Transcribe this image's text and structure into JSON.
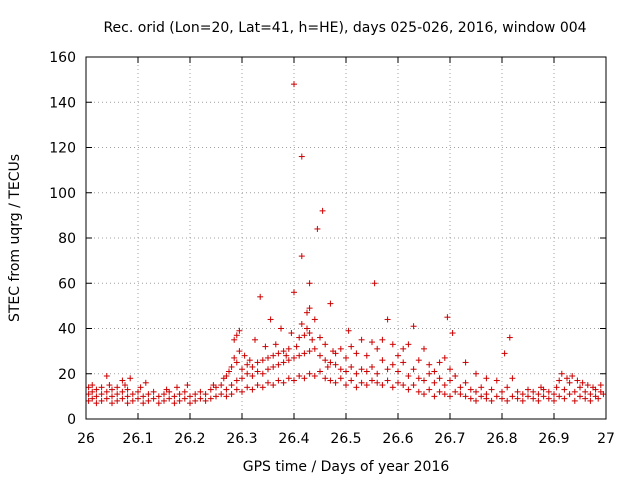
{
  "chart_data": {
    "type": "scatter",
    "title": "Rec. orid (Lon=20, Lat=41, h=HE), days 025-026, 2016, window 004",
    "xlabel": "GPS time / Days of year 2016",
    "ylabel": "STEC from uqrg / TECUs",
    "xlim": [
      26,
      27
    ],
    "ylim": [
      0,
      160
    ],
    "xticks": [
      "26",
      "26.1",
      "26.2",
      "26.3",
      "26.4",
      "26.5",
      "26.6",
      "26.7",
      "26.8",
      "26.9",
      "27"
    ],
    "yticks": [
      "0",
      "20",
      "40",
      "60",
      "80",
      "100",
      "120",
      "140",
      "160"
    ],
    "grid": true,
    "marker": "plus",
    "color": "#cc0000",
    "series": [
      {
        "points": [
          [
            26.005,
            8
          ],
          [
            26.005,
            11
          ],
          [
            26.005,
            14
          ],
          [
            26.012,
            9
          ],
          [
            26.012,
            12
          ],
          [
            26.012,
            15
          ],
          [
            26.02,
            7
          ],
          [
            26.02,
            10
          ],
          [
            26.02,
            13
          ],
          [
            26.03,
            8
          ],
          [
            26.03,
            11
          ],
          [
            26.03,
            14
          ],
          [
            26.04,
            9
          ],
          [
            26.04,
            12
          ],
          [
            26.04,
            19
          ],
          [
            26.045,
            15
          ],
          [
            26.05,
            7
          ],
          [
            26.05,
            10
          ],
          [
            26.05,
            13
          ],
          [
            26.06,
            8
          ],
          [
            26.06,
            11
          ],
          [
            26.06,
            14
          ],
          [
            26.07,
            9
          ],
          [
            26.07,
            12
          ],
          [
            26.07,
            17
          ],
          [
            26.075,
            15
          ],
          [
            26.08,
            7
          ],
          [
            26.08,
            10
          ],
          [
            26.08,
            13
          ],
          [
            26.085,
            18
          ],
          [
            26.09,
            8
          ],
          [
            26.09,
            11
          ],
          [
            26.1,
            9
          ],
          [
            26.1,
            12
          ],
          [
            26.105,
            14
          ],
          [
            26.11,
            7
          ],
          [
            26.11,
            10
          ],
          [
            26.115,
            16
          ],
          [
            26.12,
            8
          ],
          [
            26.12,
            11
          ],
          [
            26.13,
            9
          ],
          [
            26.13,
            12
          ],
          [
            26.14,
            7
          ],
          [
            26.14,
            10
          ],
          [
            26.15,
            8
          ],
          [
            26.15,
            11
          ],
          [
            26.155,
            13
          ],
          [
            26.16,
            9
          ],
          [
            26.16,
            12
          ],
          [
            26.17,
            7
          ],
          [
            26.17,
            10
          ],
          [
            26.175,
            14
          ],
          [
            26.18,
            8
          ],
          [
            26.18,
            11
          ],
          [
            26.19,
            9
          ],
          [
            26.19,
            12
          ],
          [
            26.195,
            15
          ],
          [
            26.2,
            7
          ],
          [
            26.2,
            10
          ],
          [
            26.21,
            8
          ],
          [
            26.21,
            11
          ],
          [
            26.22,
            9
          ],
          [
            26.22,
            12
          ],
          [
            26.23,
            8
          ],
          [
            26.23,
            11
          ],
          [
            26.24,
            9
          ],
          [
            26.24,
            13
          ],
          [
            26.245,
            15
          ],
          [
            26.25,
            10
          ],
          [
            26.25,
            14
          ],
          [
            26.26,
            11
          ],
          [
            26.26,
            15
          ],
          [
            26.265,
            18
          ],
          [
            26.27,
            10
          ],
          [
            26.27,
            13
          ],
          [
            26.27,
            19
          ],
          [
            26.275,
            21
          ],
          [
            26.28,
            11
          ],
          [
            26.28,
            15
          ],
          [
            26.28,
            23
          ],
          [
            26.285,
            27
          ],
          [
            26.285,
            35
          ],
          [
            26.29,
            13
          ],
          [
            26.29,
            17
          ],
          [
            26.29,
            25
          ],
          [
            26.29,
            37
          ],
          [
            26.295,
            30
          ],
          [
            26.295,
            39
          ],
          [
            26.3,
            12
          ],
          [
            26.3,
            18
          ],
          [
            26.3,
            22
          ],
          [
            26.305,
            28
          ],
          [
            26.31,
            14
          ],
          [
            26.31,
            20
          ],
          [
            26.31,
            24
          ],
          [
            26.315,
            26
          ],
          [
            26.32,
            13
          ],
          [
            26.32,
            19
          ],
          [
            26.32,
            23
          ],
          [
            26.325,
            35
          ],
          [
            26.33,
            15
          ],
          [
            26.33,
            21
          ],
          [
            26.33,
            25
          ],
          [
            26.335,
            54
          ],
          [
            26.34,
            14
          ],
          [
            26.34,
            20
          ],
          [
            26.34,
            26
          ],
          [
            26.345,
            32
          ],
          [
            26.35,
            16
          ],
          [
            26.35,
            22
          ],
          [
            26.35,
            27
          ],
          [
            26.355,
            44
          ],
          [
            26.36,
            15
          ],
          [
            26.36,
            23
          ],
          [
            26.36,
            28
          ],
          [
            26.365,
            33
          ],
          [
            26.37,
            17
          ],
          [
            26.37,
            24
          ],
          [
            26.37,
            29
          ],
          [
            26.375,
            40
          ],
          [
            26.38,
            16
          ],
          [
            26.38,
            25
          ],
          [
            26.38,
            30
          ],
          [
            26.385,
            28
          ],
          [
            26.39,
            18
          ],
          [
            26.39,
            26
          ],
          [
            26.39,
            31
          ],
          [
            26.395,
            38
          ],
          [
            26.4,
            17
          ],
          [
            26.4,
            27
          ],
          [
            26.4,
            56
          ],
          [
            26.4,
            148
          ],
          [
            26.405,
            32
          ],
          [
            26.41,
            19
          ],
          [
            26.41,
            28
          ],
          [
            26.41,
            36
          ],
          [
            26.415,
            42
          ],
          [
            26.415,
            72
          ],
          [
            26.415,
            116
          ],
          [
            26.42,
            18
          ],
          [
            26.42,
            29
          ],
          [
            26.42,
            37
          ],
          [
            26.425,
            40
          ],
          [
            26.425,
            47
          ],
          [
            26.43,
            20
          ],
          [
            26.43,
            30
          ],
          [
            26.43,
            38
          ],
          [
            26.43,
            49
          ],
          [
            26.43,
            60
          ],
          [
            26.435,
            35
          ],
          [
            26.44,
            19
          ],
          [
            26.44,
            31
          ],
          [
            26.44,
            44
          ],
          [
            26.445,
            84
          ],
          [
            26.45,
            21
          ],
          [
            26.45,
            28
          ],
          [
            26.45,
            36
          ],
          [
            26.455,
            92
          ],
          [
            26.46,
            18
          ],
          [
            26.46,
            26
          ],
          [
            26.46,
            33
          ],
          [
            26.465,
            23
          ],
          [
            26.47,
            17
          ],
          [
            26.47,
            25
          ],
          [
            26.47,
            51
          ],
          [
            26.475,
            30
          ],
          [
            26.48,
            16
          ],
          [
            26.48,
            24
          ],
          [
            26.48,
            29
          ],
          [
            26.49,
            18
          ],
          [
            26.49,
            22
          ],
          [
            26.49,
            31
          ],
          [
            26.5,
            15
          ],
          [
            26.5,
            21
          ],
          [
            26.5,
            27
          ],
          [
            26.505,
            39
          ],
          [
            26.51,
            17
          ],
          [
            26.51,
            23
          ],
          [
            26.51,
            32
          ],
          [
            26.52,
            14
          ],
          [
            26.52,
            20
          ],
          [
            26.52,
            29
          ],
          [
            26.53,
            16
          ],
          [
            26.53,
            22
          ],
          [
            26.53,
            35
          ],
          [
            26.54,
            15
          ],
          [
            26.54,
            21
          ],
          [
            26.54,
            28
          ],
          [
            26.55,
            17
          ],
          [
            26.55,
            23
          ],
          [
            26.55,
            34
          ],
          [
            26.555,
            60
          ],
          [
            26.56,
            16
          ],
          [
            26.56,
            20
          ],
          [
            26.56,
            31
          ],
          [
            26.57,
            15
          ],
          [
            26.57,
            26
          ],
          [
            26.57,
            35
          ],
          [
            26.58,
            17
          ],
          [
            26.58,
            22
          ],
          [
            26.58,
            44
          ],
          [
            26.59,
            14
          ],
          [
            26.59,
            24
          ],
          [
            26.59,
            33
          ],
          [
            26.6,
            16
          ],
          [
            26.6,
            21
          ],
          [
            26.6,
            28
          ],
          [
            26.61,
            15
          ],
          [
            26.61,
            25
          ],
          [
            26.61,
            31
          ],
          [
            26.62,
            13
          ],
          [
            26.62,
            19
          ],
          [
            26.62,
            33
          ],
          [
            26.63,
            15
          ],
          [
            26.63,
            22
          ],
          [
            26.63,
            41
          ],
          [
            26.64,
            12
          ],
          [
            26.64,
            18
          ],
          [
            26.64,
            26
          ],
          [
            26.65,
            11
          ],
          [
            26.65,
            17
          ],
          [
            26.65,
            31
          ],
          [
            26.66,
            13
          ],
          [
            26.66,
            20
          ],
          [
            26.66,
            24
          ],
          [
            26.67,
            10
          ],
          [
            26.67,
            16
          ],
          [
            26.67,
            21
          ],
          [
            26.68,
            12
          ],
          [
            26.68,
            18
          ],
          [
            26.68,
            25
          ],
          [
            26.69,
            11
          ],
          [
            26.69,
            15
          ],
          [
            26.69,
            27
          ],
          [
            26.695,
            45
          ],
          [
            26.7,
            10
          ],
          [
            26.7,
            17
          ],
          [
            26.7,
            22
          ],
          [
            26.705,
            38
          ],
          [
            26.71,
            12
          ],
          [
            26.71,
            19
          ],
          [
            26.72,
            11
          ],
          [
            26.72,
            14
          ],
          [
            26.73,
            10
          ],
          [
            26.73,
            16
          ],
          [
            26.73,
            25
          ],
          [
            26.74,
            9
          ],
          [
            26.74,
            13
          ],
          [
            26.75,
            8
          ],
          [
            26.75,
            12
          ],
          [
            26.75,
            20
          ],
          [
            26.76,
            10
          ],
          [
            26.76,
            14
          ],
          [
            26.77,
            9
          ],
          [
            26.77,
            11
          ],
          [
            26.77,
            18
          ],
          [
            26.78,
            8
          ],
          [
            26.78,
            13
          ],
          [
            26.79,
            10
          ],
          [
            26.79,
            17
          ],
          [
            26.8,
            9
          ],
          [
            26.8,
            12
          ],
          [
            26.805,
            29
          ],
          [
            26.81,
            8
          ],
          [
            26.81,
            14
          ],
          [
            26.815,
            36
          ],
          [
            26.82,
            10
          ],
          [
            26.82,
            18
          ],
          [
            26.83,
            9
          ],
          [
            26.83,
            12
          ],
          [
            26.84,
            8
          ],
          [
            26.84,
            11
          ],
          [
            26.85,
            10
          ],
          [
            26.85,
            13
          ],
          [
            26.86,
            9
          ],
          [
            26.86,
            12
          ],
          [
            26.87,
            8
          ],
          [
            26.87,
            11
          ],
          [
            26.875,
            14
          ],
          [
            26.88,
            10
          ],
          [
            26.88,
            13
          ],
          [
            26.89,
            9
          ],
          [
            26.89,
            12
          ],
          [
            26.9,
            8
          ],
          [
            26.9,
            11
          ],
          [
            26.905,
            14
          ],
          [
            26.91,
            10
          ],
          [
            26.91,
            17
          ],
          [
            26.915,
            20
          ],
          [
            26.92,
            9
          ],
          [
            26.92,
            13
          ],
          [
            26.925,
            18
          ],
          [
            26.93,
            11
          ],
          [
            26.93,
            16
          ],
          [
            26.935,
            19
          ],
          [
            26.94,
            8
          ],
          [
            26.94,
            12
          ],
          [
            26.945,
            17
          ],
          [
            26.95,
            10
          ],
          [
            26.95,
            14
          ],
          [
            26.955,
            16
          ],
          [
            26.96,
            9
          ],
          [
            26.96,
            12
          ],
          [
            26.965,
            15
          ],
          [
            26.97,
            8
          ],
          [
            26.97,
            11
          ],
          [
            26.975,
            14
          ],
          [
            26.98,
            10
          ],
          [
            26.98,
            13
          ],
          [
            26.985,
            9
          ],
          [
            26.99,
            12
          ],
          [
            26.99,
            15
          ],
          [
            26.995,
            11
          ]
        ]
      }
    ]
  }
}
